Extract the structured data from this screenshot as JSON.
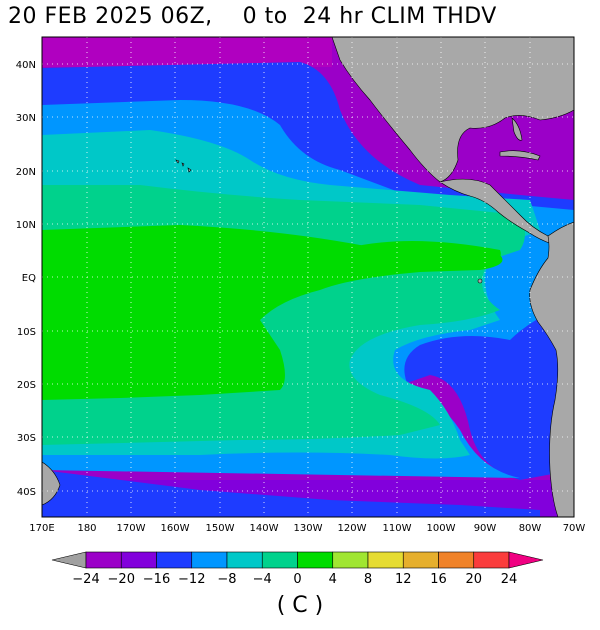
{
  "title": "20 FEB 2025 06Z,    0 to  24 hr CLIM THDV",
  "unit_label": "( C )",
  "lat_labels": [
    "40N",
    "30N",
    "20N",
    "10N",
    "EQ",
    "10S",
    "20S",
    "30S",
    "40S"
  ],
  "lon_labels": [
    "170E",
    "180",
    "170W",
    "160W",
    "150W",
    "140W",
    "130W",
    "120W",
    "110W",
    "100W",
    "90W",
    "80W",
    "70W"
  ],
  "colorbar": {
    "tick_labels": [
      "−24",
      "−20",
      "−16",
      "−12",
      "−8",
      "−4",
      "0",
      "4",
      "8",
      "12",
      "16",
      "20",
      "24"
    ],
    "colors": [
      "#a0a0a0",
      "#9b00c8",
      "#8200dc",
      "#1e3cff",
      "#0096ff",
      "#00c8c8",
      "#00d28c",
      "#00dc00",
      "#a0e632",
      "#e6dc32",
      "#e6af2d",
      "#f08228",
      "#fa3c3c",
      "#f00082"
    ]
  },
  "map": {
    "land_color": "#a8a8a8",
    "grid": "dotted"
  }
}
